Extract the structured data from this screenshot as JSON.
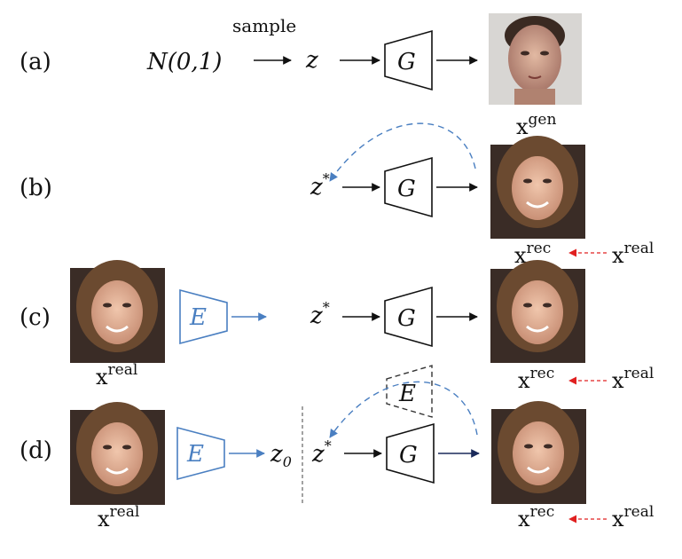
{
  "rows": {
    "a": {
      "label": "(a)",
      "dist": "N(0,1)",
      "arrow_text": "sample",
      "z": "z",
      "generator": "G",
      "out_label": "x",
      "out_sup": "gen"
    },
    "b": {
      "label": "(b)",
      "z": "z",
      "z_sup": "*",
      "generator": "G",
      "out_label": "x",
      "out_sup": "rec",
      "target_label": "x",
      "target_sup": "real"
    },
    "c": {
      "label": "(c)",
      "in_label": "x",
      "in_sup": "real",
      "encoder": "E",
      "z": "z",
      "z_sup": "*",
      "generator": "G",
      "out_label": "x",
      "out_sup": "rec",
      "target_label": "x",
      "target_sup": "real"
    },
    "d": {
      "label": "(d)",
      "in_label": "x",
      "in_sup": "real",
      "encoder": "E",
      "z0": "z",
      "z0_sub": "0",
      "z": "z",
      "z_sup": "*",
      "generator": "G",
      "aux_encoder": "E",
      "out_label": "x",
      "out_sup": "rec",
      "target_label": "x",
      "target_sup": "real"
    }
  },
  "colors": {
    "black": "#111111",
    "blue": "#4a7fc1",
    "red": "#e02020",
    "navy": "#1a2a5a",
    "face_male": "#c99a82",
    "face_female": "#d9a58a",
    "hair_female": "#6b4a30"
  }
}
